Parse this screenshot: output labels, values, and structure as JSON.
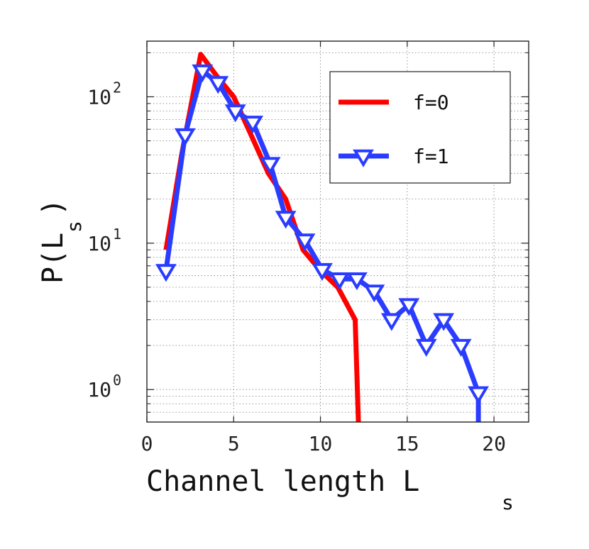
{
  "chart_data": {
    "type": "line",
    "xlabel": "Channel length L",
    "xlabel_sub": "s",
    "ylabel": "P(L",
    "ylabel_sub": "s",
    "ylabel_close": ")",
    "xlim": [
      0,
      22
    ],
    "ylim": [
      0.6,
      240
    ],
    "yscale": "log",
    "grid": true,
    "legend_position": "top-right",
    "x_ticks": [
      0,
      5,
      10,
      15,
      20
    ],
    "x_tick_labels": [
      "0",
      "5",
      "10",
      "15",
      "20"
    ],
    "y_ticks": [
      1,
      10,
      100
    ],
    "y_tick_labels": [
      {
        "base": "10",
        "exp": "0"
      },
      {
        "base": "10",
        "exp": "1"
      },
      {
        "base": "10",
        "exp": "2"
      }
    ],
    "series": [
      {
        "name": "f=0",
        "color": "#ff0000",
        "marker": "none",
        "points": [
          [
            1.1,
            9
          ],
          [
            2,
            40
          ],
          [
            3.1,
            195
          ],
          [
            4,
            140
          ],
          [
            5,
            100
          ],
          [
            6,
            55
          ],
          [
            7,
            30
          ],
          [
            8,
            20
          ],
          [
            9,
            9
          ],
          [
            10,
            6.5
          ],
          [
            11,
            5
          ],
          [
            12,
            3
          ],
          [
            12.2,
            0.55
          ]
        ]
      },
      {
        "name": "f=1",
        "color": "#2a3cff",
        "marker": "triangle-down",
        "points": [
          [
            1.1,
            6.5
          ],
          [
            2.2,
            55
          ],
          [
            3.2,
            150
          ],
          [
            4.1,
            125
          ],
          [
            5.1,
            80
          ],
          [
            6.1,
            67
          ],
          [
            7.1,
            35
          ],
          [
            8,
            15
          ],
          [
            9.1,
            10.5
          ],
          [
            10.1,
            6.6
          ],
          [
            11.1,
            5.7
          ],
          [
            12.1,
            5.7
          ],
          [
            13.1,
            4.7
          ],
          [
            14.1,
            3
          ],
          [
            15.1,
            3.8
          ],
          [
            16.1,
            2
          ],
          [
            17.1,
            3
          ],
          [
            18.1,
            2
          ],
          [
            19.1,
            0.95
          ],
          [
            19.1,
            0.55
          ]
        ]
      }
    ]
  }
}
